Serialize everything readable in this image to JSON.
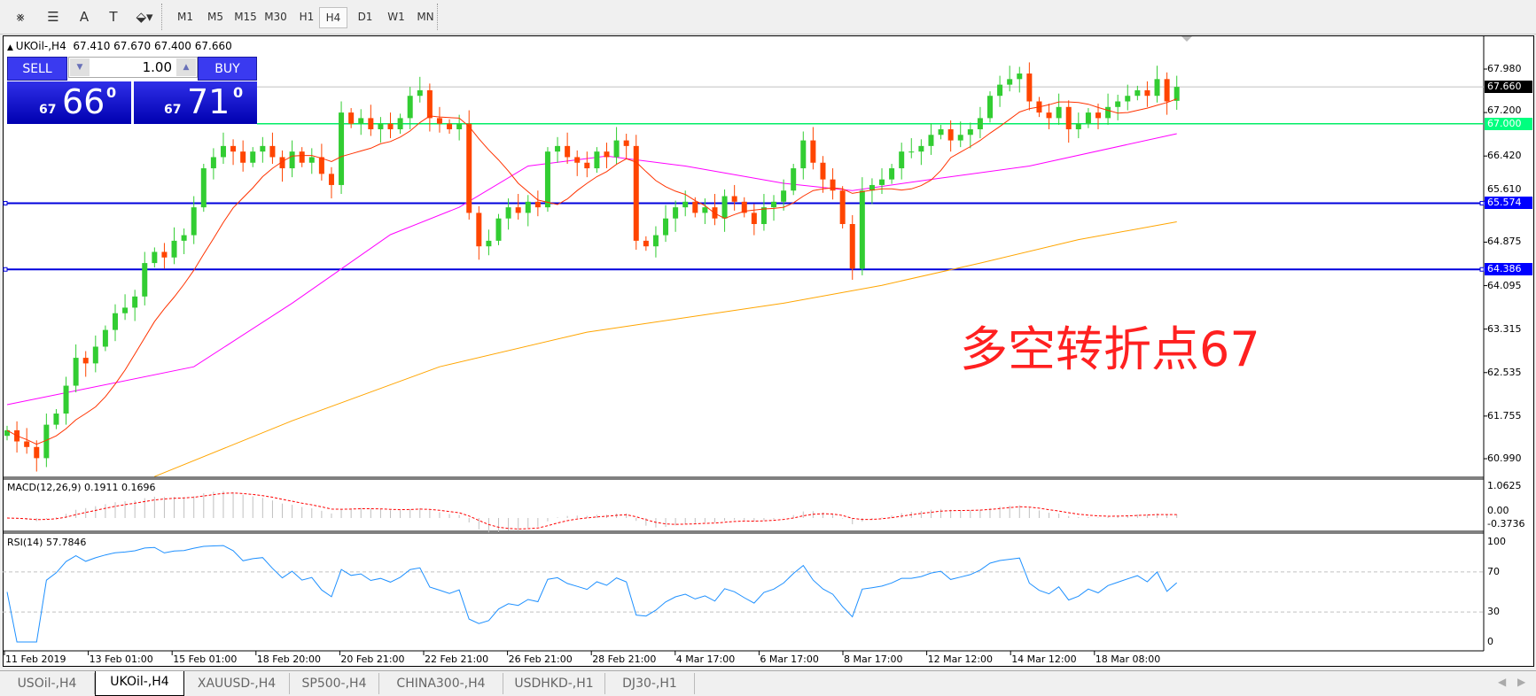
{
  "toolbar": {
    "tools": [
      {
        "name": "elliott-wave-icon",
        "glyph": "⨳"
      },
      {
        "name": "fibonacci-icon",
        "glyph": "☰"
      },
      {
        "name": "text-icon",
        "glyph": "A"
      },
      {
        "name": "text-label-icon",
        "glyph": "T"
      },
      {
        "name": "arrows-icon",
        "glyph": "⬙▾"
      }
    ],
    "timeframes": [
      "M1",
      "M5",
      "M15",
      "M30",
      "H1",
      "H4",
      "D1",
      "W1",
      "MN"
    ],
    "selected_timeframe": "H4"
  },
  "chart": {
    "symbol_line": "UKOil-,H4  67.410 67.670 67.400 67.660",
    "trade_panel": {
      "sell_label": "SELL",
      "buy_label": "BUY",
      "volume": "1.00",
      "sell_big": "67",
      "sell_digits": "66",
      "sell_sup": "0",
      "buy_big": "67",
      "buy_digits": "71",
      "buy_sup": "0"
    },
    "annotation": "多空转折点67",
    "price_axis": [
      "67.980",
      "67.200",
      "66.420",
      "65.610",
      "64.875",
      "64.095",
      "63.315",
      "62.535",
      "61.755",
      "60.990"
    ],
    "price_tags": [
      {
        "label": "67.660",
        "value": 67.66,
        "bg": "#000000",
        "fg": "#ffffff"
      },
      {
        "label": "67.000",
        "value": 67.0,
        "bg": "#00ff7f",
        "fg": "#ffffff"
      },
      {
        "label": "65.574",
        "value": 65.574,
        "bg": "#0000ff",
        "fg": "#ffffff"
      },
      {
        "label": "64.386",
        "value": 64.386,
        "bg": "#0000ff",
        "fg": "#ffffff"
      }
    ],
    "hlines": [
      {
        "value": 67.0,
        "color": "#00ee66"
      },
      {
        "value": 65.574,
        "color": "#0000dd"
      },
      {
        "value": 64.386,
        "color": "#0000dd"
      }
    ],
    "time_axis": [
      "11 Feb 2019",
      "13 Feb 01:00",
      "15 Feb 01:00",
      "18 Feb 20:00",
      "20 Feb 21:00",
      "22 Feb 21:00",
      "26 Feb 21:00",
      "28 Feb 21:00",
      "4 Mar 17:00",
      "6 Mar 17:00",
      "8 Mar 17:00",
      "12 Mar 12:00",
      "14 Mar 12:00",
      "18 Mar 08:00"
    ],
    "macd": {
      "title": "MACD(12,26,9) 0.1911 0.1696",
      "axis": [
        "1.0625",
        "0.00",
        "-0.3736"
      ]
    },
    "rsi": {
      "title": "RSI(14) 57.7846",
      "axis": [
        "100",
        "70",
        "30",
        "0"
      ]
    }
  },
  "tabs": [
    {
      "label": "USOil-,H4",
      "active": false
    },
    {
      "label": "UKOil-,H4",
      "active": true
    },
    {
      "label": "XAUUSD-,H4",
      "active": false
    },
    {
      "label": "SP500-,H4",
      "active": false
    },
    {
      "label": "CHINA300-,H4",
      "active": false
    },
    {
      "label": "USDHKD-,H1",
      "active": false
    },
    {
      "label": "DJ30-,H1",
      "active": false
    }
  ],
  "chart_data": {
    "type": "candlestick",
    "symbol": "UKOil-",
    "timeframe": "H4",
    "ylim": [
      60.99,
      67.98
    ],
    "colors": {
      "up": "#32cd32",
      "down": "#ff4500",
      "ma_fast": "#ff3300",
      "ma_mid": "#ff00ff",
      "ma_slow": "#ffa500",
      "rsi": "#1e90ff",
      "macd_hist": "#c0c0c0",
      "macd_signal": "#ff0000"
    },
    "closes": [
      61.5,
      61.3,
      61.2,
      61.0,
      61.6,
      61.8,
      62.3,
      62.8,
      62.7,
      63.0,
      63.3,
      63.6,
      63.7,
      63.9,
      64.5,
      64.7,
      64.6,
      64.9,
      65.0,
      65.5,
      66.2,
      66.4,
      66.6,
      66.5,
      66.3,
      66.5,
      66.6,
      66.4,
      66.2,
      66.5,
      66.3,
      66.4,
      66.1,
      65.9,
      67.2,
      67.0,
      67.1,
      66.9,
      67.0,
      66.9,
      67.1,
      67.5,
      67.6,
      67.1,
      67.0,
      66.9,
      67.0,
      65.4,
      64.8,
      64.9,
      65.3,
      65.5,
      65.4,
      65.6,
      65.5,
      66.5,
      66.6,
      66.4,
      66.3,
      66.2,
      66.5,
      66.4,
      66.7,
      66.6,
      64.9,
      64.8,
      65.0,
      65.3,
      65.5,
      65.6,
      65.4,
      65.5,
      65.3,
      65.7,
      65.6,
      65.4,
      65.2,
      65.5,
      65.6,
      65.8,
      66.2,
      66.7,
      66.3,
      66.0,
      65.8,
      65.2,
      64.4,
      65.8,
      65.9,
      66.0,
      66.2,
      66.5,
      66.5,
      66.6,
      66.8,
      66.9,
      66.7,
      66.8,
      66.9,
      67.1,
      67.5,
      67.7,
      67.8,
      67.9,
      67.4,
      67.2,
      67.1,
      67.3,
      66.9,
      67.0,
      67.2,
      67.1,
      67.3,
      67.4,
      67.5,
      67.6,
      67.5,
      67.8,
      67.4,
      67.66
    ],
    "last_bar": {
      "open": 67.41,
      "high": 67.67,
      "low": 67.4,
      "close": 67.66
    },
    "ma_mid": [
      [
        0,
        61.96
      ],
      [
        19,
        62.64
      ],
      [
        29,
        63.78
      ],
      [
        39,
        65.01
      ],
      [
        46,
        65.5
      ],
      [
        53,
        66.24
      ],
      [
        61,
        66.42
      ],
      [
        69,
        66.24
      ],
      [
        79,
        65.93
      ],
      [
        86,
        65.8
      ],
      [
        94,
        66.0
      ],
      [
        104,
        66.24
      ],
      [
        119,
        66.82
      ]
    ],
    "ma_slow": [
      [
        15,
        60.67
      ],
      [
        29,
        61.67
      ],
      [
        44,
        62.64
      ],
      [
        59,
        63.26
      ],
      [
        79,
        63.78
      ],
      [
        89,
        64.1
      ],
      [
        99,
        64.5
      ],
      [
        109,
        64.92
      ],
      [
        119,
        65.24
      ]
    ]
  }
}
